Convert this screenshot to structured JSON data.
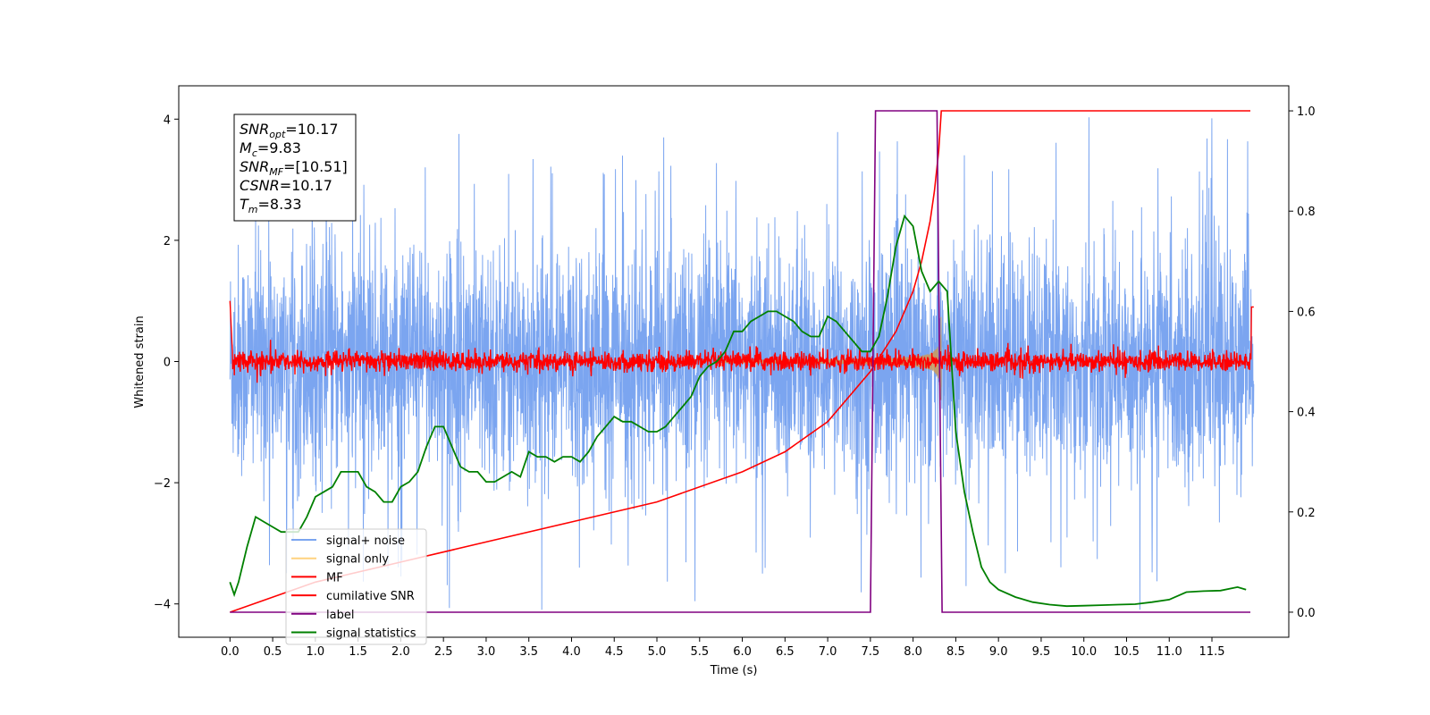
{
  "chart_data": {
    "type": "line",
    "xlabel": "Time (s)",
    "ylabel": "Whitened strain",
    "xlim": [
      -0.6,
      12.4
    ],
    "ylim": [
      -4.55,
      4.55
    ],
    "ylim_right": [
      -0.05,
      1.05
    ],
    "x_ticks": [
      "0.0",
      "0.5",
      "1.0",
      "1.5",
      "2.0",
      "2.5",
      "3.0",
      "3.5",
      "4.0",
      "4.5",
      "5.0",
      "5.5",
      "6.0",
      "6.5",
      "7.0",
      "7.5",
      "8.0",
      "8.5",
      "9.0",
      "9.5",
      "10.0",
      "10.5",
      "11.0",
      "11.5"
    ],
    "y_ticks_left": [
      "4",
      "2",
      "0",
      "−2",
      "−4"
    ],
    "y_ticks_right": [
      "1.0",
      "0.8",
      "0.6",
      "0.4",
      "0.2",
      "0.0"
    ],
    "grid": false,
    "legend_location": "lower-left",
    "annotation": [
      {
        "sym": "SNR",
        "sub": "opt",
        "val": "=10.17"
      },
      {
        "sym": "M",
        "sub": "c",
        "val": "=9.83"
      },
      {
        "sym": "SNR",
        "sub": "MF",
        "val": "=[10.51]"
      },
      {
        "sym": "CSNR",
        "sub": "",
        "val": "=10.17"
      },
      {
        "sym": "T",
        "sub": "m",
        "val": "=8.33"
      }
    ],
    "series": [
      {
        "name": "signal+ noise",
        "color": "#6495ED",
        "axis": "left",
        "note": "whitened noise band roughly -2.5 to 2.5 with spikes to ~4, t = 0 to 12"
      },
      {
        "name": "signal only",
        "color": "#FFD27F",
        "axis": "left",
        "note": "chirp growing from ~6 s, peak amplitude ~0.8 at 8.33 s"
      },
      {
        "name": "MF",
        "color": "#FF0000",
        "axis": "left",
        "note": "matched filter output, noise about 0 with amplitude ~0.2"
      },
      {
        "name": "cumilative SNR",
        "color": "#FF0000",
        "axis": "right",
        "x": [
          0.0,
          1.0,
          2.0,
          3.0,
          4.0,
          5.0,
          6.0,
          6.5,
          7.0,
          7.5,
          7.8,
          8.0,
          8.1,
          8.2,
          8.25,
          8.3,
          8.33,
          11.95
        ],
        "y": [
          0.0,
          0.06,
          0.1,
          0.14,
          0.18,
          0.22,
          0.28,
          0.32,
          0.38,
          0.48,
          0.56,
          0.64,
          0.7,
          0.78,
          0.84,
          0.92,
          1.0,
          1.0
        ]
      },
      {
        "name": "label",
        "color": "#800080",
        "axis": "right",
        "x": [
          0.0,
          7.5,
          7.56,
          8.28,
          8.34,
          11.95
        ],
        "y": [
          0.0,
          0.0,
          1.0,
          1.0,
          0.0,
          0.0
        ]
      },
      {
        "name": "signal statistics",
        "color": "#008000",
        "axis": "right",
        "x": [
          0.0,
          0.05,
          0.1,
          0.2,
          0.3,
          0.4,
          0.5,
          0.6,
          0.7,
          0.8,
          0.9,
          1.0,
          1.1,
          1.2,
          1.3,
          1.4,
          1.5,
          1.6,
          1.7,
          1.8,
          1.9,
          2.0,
          2.1,
          2.2,
          2.3,
          2.4,
          2.5,
          2.6,
          2.7,
          2.8,
          2.9,
          3.0,
          3.1,
          3.2,
          3.3,
          3.4,
          3.5,
          3.6,
          3.7,
          3.8,
          3.9,
          4.0,
          4.1,
          4.2,
          4.3,
          4.4,
          4.5,
          4.6,
          4.7,
          4.8,
          4.9,
          5.0,
          5.1,
          5.2,
          5.3,
          5.4,
          5.5,
          5.6,
          5.7,
          5.8,
          5.9,
          6.0,
          6.1,
          6.2,
          6.3,
          6.4,
          6.5,
          6.6,
          6.7,
          6.8,
          6.9,
          7.0,
          7.1,
          7.2,
          7.3,
          7.4,
          7.5,
          7.6,
          7.7,
          7.8,
          7.9,
          8.0,
          8.1,
          8.2,
          8.3,
          8.4,
          8.5,
          8.6,
          8.7,
          8.8,
          8.9,
          9.0,
          9.2,
          9.4,
          9.6,
          9.8,
          10.0,
          10.2,
          10.4,
          10.6,
          10.8,
          11.0,
          11.2,
          11.4,
          11.6,
          11.8,
          11.9
        ],
        "y": [
          0.06,
          0.035,
          0.06,
          0.13,
          0.19,
          0.18,
          0.17,
          0.16,
          0.16,
          0.16,
          0.19,
          0.23,
          0.24,
          0.25,
          0.28,
          0.28,
          0.28,
          0.25,
          0.24,
          0.22,
          0.22,
          0.25,
          0.26,
          0.28,
          0.33,
          0.37,
          0.37,
          0.33,
          0.29,
          0.28,
          0.28,
          0.26,
          0.26,
          0.27,
          0.28,
          0.27,
          0.32,
          0.31,
          0.31,
          0.3,
          0.31,
          0.31,
          0.3,
          0.32,
          0.35,
          0.37,
          0.39,
          0.38,
          0.38,
          0.37,
          0.36,
          0.36,
          0.37,
          0.39,
          0.41,
          0.43,
          0.47,
          0.49,
          0.5,
          0.52,
          0.56,
          0.56,
          0.58,
          0.59,
          0.6,
          0.6,
          0.59,
          0.58,
          0.56,
          0.55,
          0.55,
          0.59,
          0.58,
          0.56,
          0.54,
          0.52,
          0.52,
          0.55,
          0.63,
          0.73,
          0.79,
          0.77,
          0.68,
          0.64,
          0.66,
          0.64,
          0.36,
          0.24,
          0.16,
          0.09,
          0.06,
          0.045,
          0.03,
          0.02,
          0.015,
          0.012,
          0.013,
          0.014,
          0.015,
          0.016,
          0.02,
          0.025,
          0.04,
          0.042,
          0.043,
          0.05,
          0.045
        ]
      }
    ]
  }
}
